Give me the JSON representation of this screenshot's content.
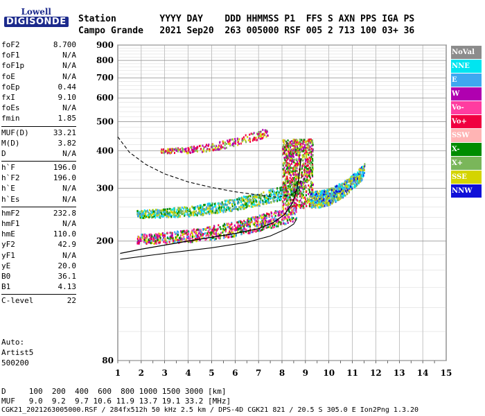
{
  "logo": {
    "brand": "Lowell",
    "product": "DIGISONDE"
  },
  "header": {
    "row1": "Station        YYYY DAY    DDD HHMMSS P1  FFS S AXN PPS IGA PS",
    "row2": "Campo Grande   2021 Sep20  263 005000 RSF 005 2 713 100 03+ 36"
  },
  "params": [
    [
      {
        "k": "foF2",
        "v": "8.700"
      },
      {
        "k": "foF1",
        "v": "N/A"
      },
      {
        "k": "foF1p",
        "v": "N/A"
      },
      {
        "k": "foE",
        "v": "N/A"
      },
      {
        "k": "foEp",
        "v": "0.44"
      },
      {
        "k": "fxI",
        "v": "9.10"
      },
      {
        "k": "foEs",
        "v": "N/A"
      },
      {
        "k": "fmin",
        "v": "1.85"
      }
    ],
    [
      {
        "k": "MUF(D)",
        "v": "33.21"
      },
      {
        "k": "M(D)",
        "v": "3.82"
      },
      {
        "k": "D",
        "v": "N/A"
      }
    ],
    [
      {
        "k": "h`F",
        "v": "196.0"
      },
      {
        "k": "h`F2",
        "v": "196.0"
      },
      {
        "k": "h`E",
        "v": "N/A"
      },
      {
        "k": "h`Es",
        "v": "N/A"
      }
    ],
    [
      {
        "k": "hmF2",
        "v": "232.8"
      },
      {
        "k": "hmF1",
        "v": "N/A"
      },
      {
        "k": "hmE",
        "v": "110.0"
      },
      {
        "k": "yF2",
        "v": "42.9"
      },
      {
        "k": "yF1",
        "v": "N/A"
      },
      {
        "k": "yE",
        "v": "20.0"
      },
      {
        "k": "B0",
        "v": "36.1"
      },
      {
        "k": "B1",
        "v": "4.13"
      }
    ],
    [
      {
        "k": "C-level",
        "v": "22"
      }
    ]
  ],
  "auto": {
    "line1": "Auto:",
    "line2": "Artist5",
    "line3": "500200"
  },
  "legend": [
    {
      "label": "NoVal",
      "color": "#8c8c8c"
    },
    {
      "label": "NNE",
      "color": "#00e5f0"
    },
    {
      "label": "E",
      "color": "#3fa8f0"
    },
    {
      "label": "W",
      "color": "#b000b0"
    },
    {
      "label": "Vo-",
      "color": "#ff3ca0"
    },
    {
      "label": "Vo+",
      "color": "#f00040"
    },
    {
      "label": "SSW",
      "color": "#ffb4b4"
    },
    {
      "label": "X-",
      "color": "#008c00"
    },
    {
      "label": "X+",
      "color": "#7ab65a"
    },
    {
      "label": "SSE",
      "color": "#d4d400"
    },
    {
      "label": "NNW",
      "color": "#1010d8"
    }
  ],
  "footer": {
    "line1": "D     100  200  400  600  800 1000 1500 3000 [km]",
    "line2": "MUF   9.0  9.2  9.7 10.6 11.9 13.7 19.1 33.2 [MHz]",
    "line3": "CGK21_2021263005000.RSF / 284fx512h 50 kHz 2.5 km / DPS-4D CGK21 821 / 20.5 S 305.0 E Ion2Png 1.3.20"
  },
  "chart_data": {
    "type": "scatter",
    "xlim": [
      1,
      15
    ],
    "ylim": [
      80,
      900
    ],
    "x_ticks": [
      1,
      2,
      3,
      4,
      5,
      6,
      7,
      8,
      9,
      10,
      11,
      12,
      13,
      14,
      15
    ],
    "y_ticks": [
      80,
      200,
      300,
      400,
      500,
      600,
      700,
      800,
      900
    ],
    "y_scale": "log",
    "grid": true,
    "clusters": [
      {
        "name": "F-trace low band",
        "x_range": [
          1.8,
          8.6
        ],
        "h_start": 202,
        "h_end": 245,
        "colors": [
          "#ff3ca0",
          "#f00040",
          "#b000b0",
          "#008c00",
          "#3fa8f0",
          "#d4d400"
        ]
      },
      {
        "name": "F-trace upper band",
        "x_range": [
          1.8,
          8.9
        ],
        "h_start": 245,
        "h_end": 300,
        "colors": [
          "#00e5f0",
          "#3fa8f0",
          "#d4d400",
          "#008c00",
          "#7ab65a"
        ]
      },
      {
        "name": "second-hop trace",
        "x_range": [
          2.8,
          7.4
        ],
        "h_start": 398,
        "h_end": 460,
        "colors": [
          "#f00040",
          "#d4d400",
          "#7ab65a",
          "#b000b0"
        ]
      },
      {
        "name": "spread F near cusp",
        "x_range": [
          8.0,
          9.3
        ],
        "h_start": 260,
        "h_end": 440,
        "colors": [
          "#008c00",
          "#d4d400",
          "#7ab65a",
          "#f00040",
          "#b000b0"
        ]
      },
      {
        "name": "spread F blob",
        "x_range": [
          9.2,
          11.5
        ],
        "h_start": 270,
        "h_end": 340,
        "colors": [
          "#1010d8",
          "#d4d400",
          "#00e5f0",
          "#3fa8f0",
          "#7ab65a"
        ]
      }
    ],
    "profile_solid": [
      [
        1.1,
        182
      ],
      [
        2,
        188
      ],
      [
        3,
        194
      ],
      [
        4,
        200
      ],
      [
        5,
        206
      ],
      [
        6,
        212
      ],
      [
        7,
        220
      ],
      [
        7.6,
        230
      ],
      [
        8.1,
        245
      ],
      [
        8.45,
        268
      ],
      [
        8.65,
        300
      ],
      [
        8.75,
        340
      ],
      [
        8.8,
        375
      ]
    ],
    "profile_lower": [
      [
        1.1,
        174
      ],
      [
        3,
        182
      ],
      [
        5,
        190
      ],
      [
        6.5,
        198
      ],
      [
        7.5,
        208
      ],
      [
        8.2,
        220
      ],
      [
        8.5,
        228
      ],
      [
        8.6,
        235
      ]
    ],
    "profile_dashed": [
      [
        1.0,
        445
      ],
      [
        1.5,
        395
      ],
      [
        2.2,
        360
      ],
      [
        3,
        335
      ],
      [
        4,
        315
      ],
      [
        5,
        302
      ],
      [
        6,
        292
      ],
      [
        7,
        285
      ],
      [
        7.8,
        280
      ],
      [
        8.4,
        285
      ],
      [
        8.7,
        298
      ],
      [
        8.85,
        330
      ]
    ]
  }
}
